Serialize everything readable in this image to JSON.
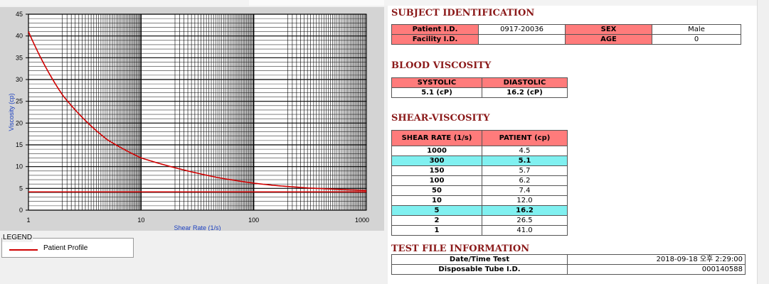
{
  "subject": {
    "title": "SUBJECT IDENTIFICATION",
    "patient_id_label": "Patient I.D.",
    "patient_id": "0917-20036",
    "sex_label": "SEX",
    "sex": "Male",
    "facility_id_label": "Facility I.D.",
    "facility_id": "",
    "age_label": "AGE",
    "age": "0"
  },
  "blood": {
    "title": "BLOOD VISCOSITY",
    "systolic_label": "SYSTOLIC",
    "diastolic_label": "DIASTOLIC",
    "systolic": "5.1 (cP)",
    "diastolic": "16.2 (cP)"
  },
  "shear": {
    "title": "SHEAR-VISCOSITY",
    "col_rate": "SHEAR RATE (1/s)",
    "col_patient": "PATIENT (cp)",
    "rows": [
      {
        "rate": "1000",
        "value": "4.5",
        "highlight": false
      },
      {
        "rate": "300",
        "value": "5.1",
        "highlight": true
      },
      {
        "rate": "150",
        "value": "5.7",
        "highlight": false
      },
      {
        "rate": "100",
        "value": "6.2",
        "highlight": false
      },
      {
        "rate": "50",
        "value": "7.4",
        "highlight": false
      },
      {
        "rate": "10",
        "value": "12.0",
        "highlight": false
      },
      {
        "rate": "5",
        "value": "16.2",
        "highlight": true
      },
      {
        "rate": "2",
        "value": "26.5",
        "highlight": false
      },
      {
        "rate": "1",
        "value": "41.0",
        "highlight": false
      }
    ]
  },
  "testfile": {
    "title": "TEST FILE INFORMATION",
    "date_label": "Date/Time Test",
    "date_value": "2018-09-18   오후 2:29:00",
    "tube_label": "Disposable Tube I.D.",
    "tube_value": "000140588"
  },
  "legend": {
    "title": "LEGEND",
    "entry": "Patient Profile"
  },
  "colors": {
    "series": "#d00000",
    "header_pink": "#ff7b7b",
    "highlight_cyan": "#80f0f0",
    "title_red": "#8b1a1a"
  },
  "chart_data": {
    "type": "line",
    "x_scale": "log",
    "xlabel": "Shear Rate (1/s)",
    "ylabel": "Viscosity (cp)",
    "xlim": [
      1,
      1000
    ],
    "ylim": [
      0,
      45
    ],
    "x_ticks": [
      "1",
      "10",
      "100",
      "1000"
    ],
    "y_ticks": [
      "0",
      "5",
      "10",
      "15",
      "20",
      "25",
      "30",
      "35",
      "40",
      "45"
    ],
    "grid": true,
    "series": [
      {
        "name": "Patient Profile",
        "x": [
          1,
          2,
          5,
          10,
          50,
          100,
          150,
          300,
          1000
        ],
        "values": [
          41.0,
          26.5,
          16.2,
          12.0,
          7.4,
          6.2,
          5.7,
          5.1,
          4.5
        ]
      }
    ],
    "reference_line": 4.2
  }
}
